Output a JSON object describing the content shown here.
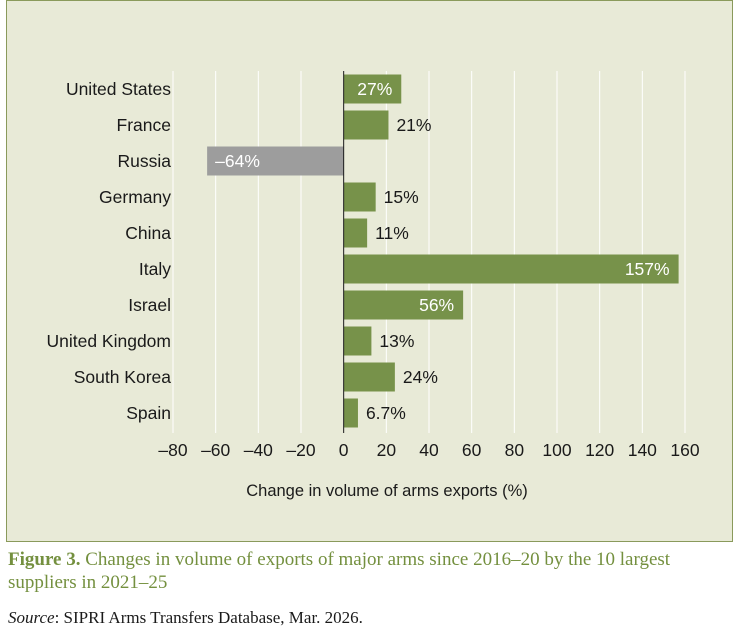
{
  "chart_data": {
    "type": "bar",
    "orientation": "horizontal",
    "categories": [
      "United States",
      "France",
      "Russia",
      "Germany",
      "China",
      "Italy",
      "Israel",
      "United Kingdom",
      "South Korea",
      "Spain"
    ],
    "values": [
      27,
      21,
      -64,
      15,
      11,
      157,
      56,
      13,
      24,
      6.7
    ],
    "value_labels": [
      "27%",
      "21%",
      "–64%",
      "15%",
      "11%",
      "157%",
      "56%",
      "13%",
      "24%",
      "6.7%"
    ],
    "xlabel": "Change in volume of arms exports (%)",
    "xlim": [
      -80,
      160
    ],
    "xticks": [
      -80,
      -60,
      -40,
      -20,
      0,
      20,
      40,
      60,
      80,
      100,
      120,
      140,
      160
    ],
    "xtick_labels": [
      "–80",
      "–60",
      "–40",
      "–20",
      "0",
      "20",
      "40",
      "60",
      "80",
      "100",
      "120",
      "140",
      "160"
    ],
    "grid": "vertical",
    "colors": {
      "positive": "#77924a",
      "negative": "#9d9d9d",
      "grid": "#ffffff",
      "background": "#e8ead7",
      "label_inside": "#ffffff",
      "label_outside": "#1a1a1a"
    }
  },
  "caption": {
    "label": "Figure 3.",
    "text": "Changes in volume of exports of major arms since 2016–20 by the 10 largest suppliers in 2021–25"
  },
  "source": {
    "label": "Source",
    "text": ": SIPRI Arms Transfers Database, Mar. 2026."
  }
}
